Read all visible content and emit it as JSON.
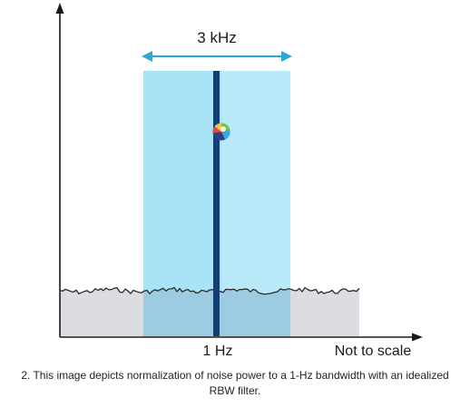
{
  "diagram": {
    "bandwidth_label": "3 kHz",
    "rbw_label": "1 Hz",
    "scale_note": "Not to scale"
  },
  "caption": "2. This image depicts normalization of noise power to a 1-Hz bandwidth with an idealized RBW filter.",
  "colors": {
    "axis": "#1a1a1a",
    "bandwidth_fill": "#a9e3f7",
    "bandwidth_arrow": "#2aa9d9",
    "rbw_line": "#123d7a",
    "noise_fill": "#dcdde0",
    "noise_overlap": "#9dcbe2",
    "noise_line": "#2b2b2b"
  },
  "icons": {
    "marker": "colorful-circle-marker-icon"
  }
}
